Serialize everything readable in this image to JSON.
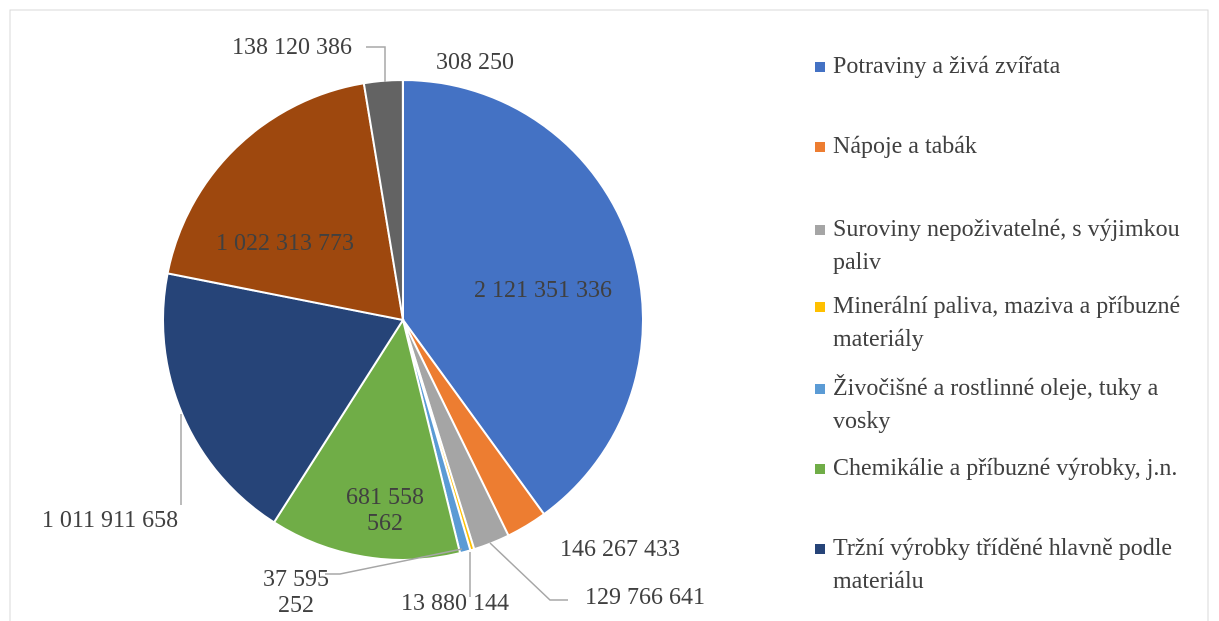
{
  "chart_data": {
    "type": "pie",
    "categories": [
      "Potraviny a živá zvířata",
      "Nápoje a tabák",
      "Suroviny nepoživatelné, s výjimkou paliv",
      "Minerální paliva, maziva a příbuzné materiály",
      "Živočišné a rostlinné oleje, tuky a vosky",
      "Chemikálie a příbuzné výrobky, j.n.",
      "Tržní výrobky tříděné hlavně podle materiálu",
      null,
      null,
      null
    ],
    "values": [
      2121351336,
      146267433,
      129766641,
      13880144,
      37595252,
      681558562,
      1011911658,
      1022313773,
      138120386,
      308250
    ],
    "value_labels": [
      "2 121 351 336",
      "146 267 433",
      "129 766 641",
      "13 880 144",
      "37 595 252",
      "681 558 562",
      "1 011 911 658",
      "1 022 313 773",
      "138 120 386",
      "308 250"
    ],
    "colors": [
      "#4472c4",
      "#ed7d31",
      "#a5a5a5",
      "#ffc000",
      "#5b9bd5",
      "#70ad47",
      "#264478",
      "#9e480e",
      "#636363",
      "#997300"
    ],
    "legend": "right"
  }
}
